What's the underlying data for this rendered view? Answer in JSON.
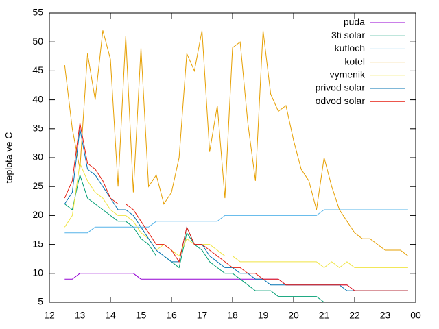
{
  "chart_data": {
    "type": "line",
    "y_label": "teplota ve C",
    "x": [
      12.5,
      12.75,
      13,
      13.25,
      13.5,
      13.75,
      14,
      14.25,
      14.5,
      14.75,
      15,
      15.25,
      15.5,
      15.75,
      16,
      16.25,
      16.5,
      16.75,
      17,
      17.25,
      17.5,
      17.75,
      18,
      18.25,
      18.5,
      18.75,
      19,
      19.25,
      19.5,
      19.75,
      20,
      20.25,
      20.5,
      20.75,
      21,
      21.25,
      21.5,
      21.75,
      22,
      22.25,
      22.5,
      22.75,
      23,
      23.25,
      23.5,
      23.75
    ],
    "series": [
      {
        "name": "puda",
        "color": "#9400d3",
        "values": [
          9,
          9,
          10,
          10,
          10,
          10,
          10,
          10,
          10,
          10,
          9,
          9,
          9,
          9,
          9,
          9,
          9,
          9,
          9,
          9,
          9,
          9,
          9,
          9,
          9,
          9,
          9,
          9,
          9,
          8,
          8,
          8,
          8,
          8,
          8,
          8,
          8,
          8,
          7,
          7,
          7,
          7,
          7,
          7,
          7,
          7
        ]
      },
      {
        "name": "3ti solar",
        "color": "#009e73",
        "values": [
          22,
          21,
          27,
          23,
          22,
          21,
          20,
          19,
          19,
          18,
          16,
          15,
          13,
          13,
          12,
          11,
          17,
          15,
          14,
          12,
          11,
          10,
          10,
          9,
          8,
          7,
          7,
          7,
          6,
          6,
          6,
          6,
          6,
          6,
          5,
          null,
          null,
          null,
          null,
          null,
          null,
          null,
          null,
          null,
          null,
          null
        ]
      },
      {
        "name": "kutloch",
        "color": "#56b4e9",
        "values": [
          17,
          17,
          17,
          17,
          18,
          18,
          18,
          18,
          18,
          18,
          18,
          18,
          19,
          19,
          19,
          19,
          19,
          19,
          19,
          19,
          19,
          20,
          20,
          20,
          20,
          20,
          20,
          20,
          20,
          20,
          20,
          20,
          20,
          20,
          21,
          21,
          21,
          21,
          21,
          21,
          21,
          21,
          21,
          21,
          21,
          21
        ]
      },
      {
        "name": "kotel",
        "color": "#e69f00",
        "values": [
          46,
          35,
          28,
          48,
          40,
          52,
          47,
          25,
          51,
          24,
          49,
          25,
          27,
          22,
          24,
          30,
          48,
          45,
          52,
          31,
          39,
          23,
          49,
          50,
          36,
          26,
          52,
          41,
          38,
          39,
          33,
          28,
          26,
          21,
          30,
          25,
          21,
          19,
          17,
          16,
          16,
          15,
          14,
          14,
          14,
          13
        ]
      },
      {
        "name": "vymenik",
        "color": "#f0e442",
        "values": [
          18,
          20,
          29,
          26,
          24,
          23,
          21,
          20,
          20,
          19,
          17,
          16,
          14,
          15,
          14,
          13,
          16,
          15,
          15,
          15,
          14,
          13,
          13,
          12,
          12,
          12,
          12,
          12,
          12,
          12,
          12,
          12,
          12,
          12,
          11,
          12,
          11,
          12,
          11,
          11,
          11,
          11,
          11,
          11,
          11,
          11
        ]
      },
      {
        "name": "privod solar",
        "color": "#0072b2",
        "values": [
          22,
          24,
          35,
          28,
          27,
          25,
          23,
          21,
          21,
          20,
          18,
          16,
          14,
          13,
          12,
          12,
          18,
          15,
          15,
          13,
          12,
          11,
          11,
          10,
          10,
          9,
          9,
          8,
          8,
          8,
          8,
          8,
          8,
          8,
          8,
          8,
          8,
          7,
          7,
          7,
          7,
          7,
          7,
          7,
          7,
          7
        ]
      },
      {
        "name": "odvod solar",
        "color": "#e51e10",
        "values": [
          23,
          26,
          36,
          29,
          28,
          26,
          23,
          22,
          22,
          21,
          19,
          17,
          15,
          15,
          14,
          12,
          18,
          15,
          15,
          14,
          13,
          12,
          11,
          11,
          10,
          10,
          9,
          9,
          9,
          8,
          8,
          8,
          8,
          8,
          8,
          8,
          8,
          8,
          7,
          7,
          7,
          7,
          7,
          7,
          7,
          7
        ]
      }
    ],
    "xlim": [
      12,
      24
    ],
    "xticks": [
      12,
      13,
      14,
      15,
      16,
      17,
      18,
      19,
      20,
      21,
      22,
      23,
      {
        "value": 24,
        "label": "00"
      }
    ],
    "ylim": [
      5,
      55
    ],
    "yticks": [
      5,
      10,
      15,
      20,
      25,
      30,
      35,
      40,
      45,
      50,
      55
    ],
    "legend": "top-right"
  }
}
